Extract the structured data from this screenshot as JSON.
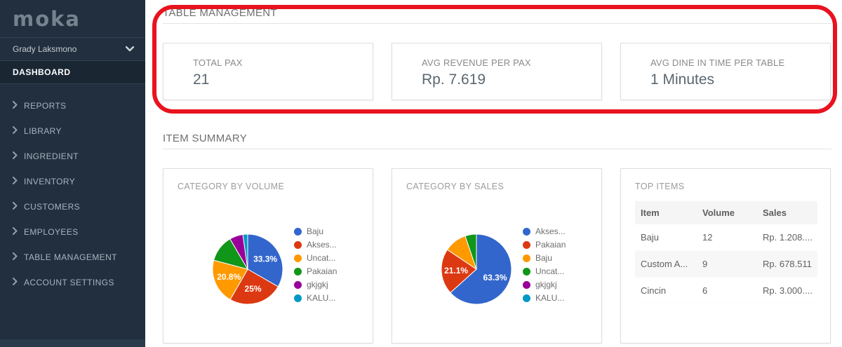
{
  "sidebar": {
    "logo_text": "moka",
    "user_name": "Grady Laksmono",
    "dashboard_label": "DASHBOARD",
    "items": [
      {
        "label": "REPORTS"
      },
      {
        "label": "LIBRARY"
      },
      {
        "label": "INGREDIENT"
      },
      {
        "label": "INVENTORY"
      },
      {
        "label": "CUSTOMERS"
      },
      {
        "label": "EMPLOYEES"
      },
      {
        "label": "TABLE MANAGEMENT"
      },
      {
        "label": "ACCOUNT SETTINGS"
      }
    ]
  },
  "main": {
    "section1_title": "TABLE MANAGEMENT",
    "annotation_color": "#e8131e",
    "metrics": [
      {
        "label": "TOTAL PAX",
        "value": "21"
      },
      {
        "label": "AVG REVENUE PER PAX",
        "value": "Rp. 7.619"
      },
      {
        "label": "AVG DINE IN TIME PER TABLE",
        "value": "1 Minutes"
      }
    ],
    "section2_title": "ITEM SUMMARY",
    "top_items": {
      "title": "TOP ITEMS",
      "columns": [
        "Item",
        "Volume",
        "Sales"
      ],
      "rows": [
        [
          "Baju",
          "12",
          "Rp. 1.208...."
        ],
        [
          "Custom A...",
          "9",
          "Rp. 678.511"
        ],
        [
          "Cincin",
          "6",
          "Rp. 3.000...."
        ]
      ]
    }
  },
  "chart_data": [
    {
      "type": "pie",
      "title": "CATEGORY BY VOLUME",
      "legend_position": "right",
      "slices": [
        {
          "label": "Baju",
          "value": 33.3,
          "color": "#3366cc",
          "percent_label": "33.3%"
        },
        {
          "label": "Akses...",
          "value": 25.0,
          "color": "#dc3912",
          "percent_label": "25%"
        },
        {
          "label": "Uncat...",
          "value": 20.8,
          "color": "#ff9900",
          "percent_label": "20.8%"
        },
        {
          "label": "Pakaian",
          "value": 12.5,
          "color": "#109618",
          "percent_label": ""
        },
        {
          "label": "gkjgkj",
          "value": 6.2,
          "color": "#990099",
          "percent_label": ""
        },
        {
          "label": "KALU...",
          "value": 2.2,
          "color": "#0099c6",
          "percent_label": ""
        }
      ]
    },
    {
      "type": "pie",
      "title": "CATEGORY BY SALES",
      "legend_position": "right",
      "slices": [
        {
          "label": "Akses...",
          "value": 63.3,
          "color": "#3366cc",
          "percent_label": "63.3%"
        },
        {
          "label": "Pakaian",
          "value": 21.1,
          "color": "#dc3912",
          "percent_label": "21.1%"
        },
        {
          "label": "Baju",
          "value": 10.4,
          "color": "#ff9900",
          "percent_label": ""
        },
        {
          "label": "Uncat...",
          "value": 5.2,
          "color": "#109618",
          "percent_label": ""
        },
        {
          "label": "gkjgkj",
          "value": 0,
          "color": "#990099",
          "percent_label": ""
        },
        {
          "label": "KALU...",
          "value": 0,
          "color": "#0099c6",
          "percent_label": ""
        }
      ]
    }
  ]
}
